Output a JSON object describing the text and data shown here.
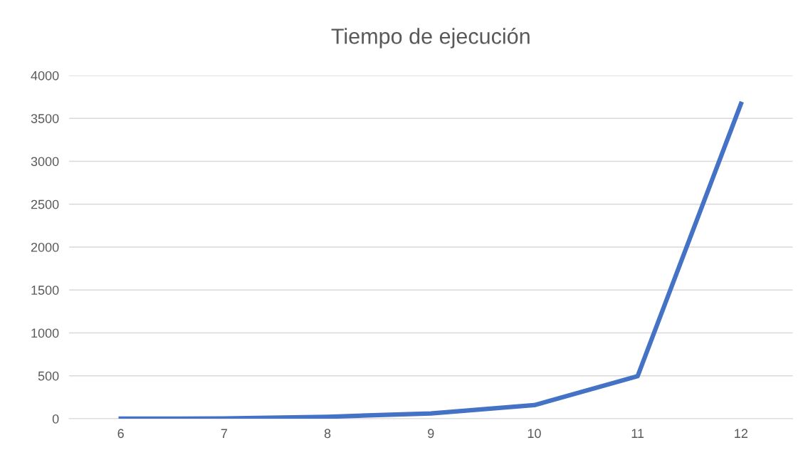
{
  "chart_data": {
    "type": "line",
    "title": "Tiempo de ejecución",
    "categories": [
      "6",
      "7",
      "8",
      "9",
      "10",
      "11",
      "12"
    ],
    "series": [
      {
        "color": "#4472c4",
        "values": [
          0,
          2,
          22,
          62,
          158,
          495,
          3670
        ]
      }
    ],
    "ylim": [
      0,
      4000
    ],
    "yticks": [
      0,
      500,
      1000,
      1500,
      2000,
      2500,
      3000,
      3500,
      4000
    ],
    "grid": "y",
    "legend": false,
    "marker": "none",
    "line_style": "solid"
  }
}
